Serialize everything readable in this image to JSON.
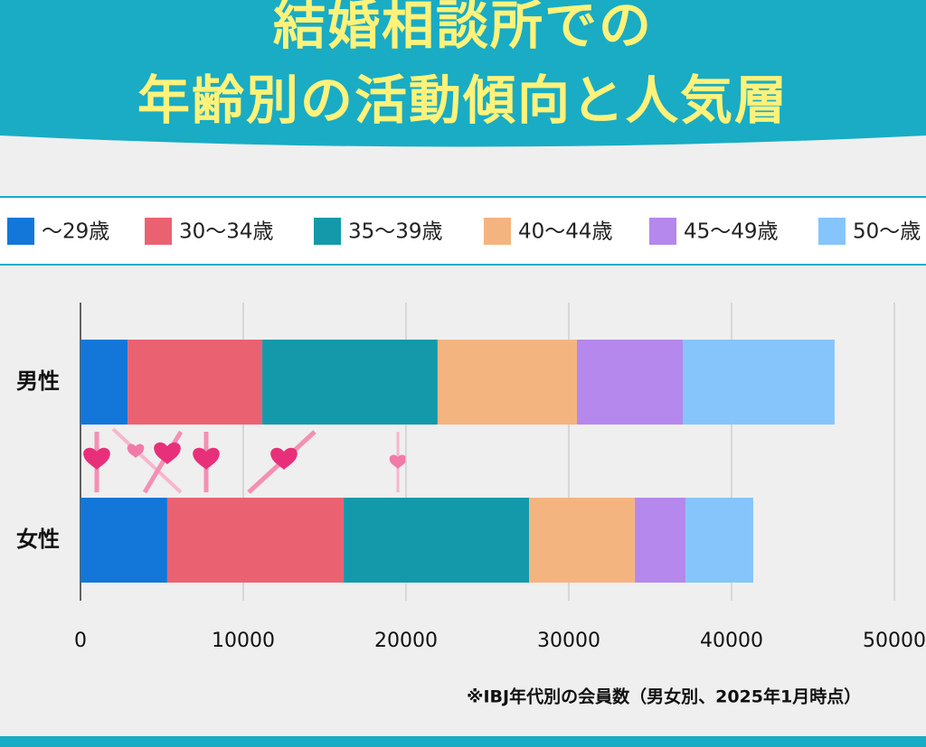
{
  "chart_data": {
    "type": "stacked-bar-horizontal",
    "title": [
      "結婚相談所での",
      "年齢別の活動傾向と人気層"
    ],
    "categories": [
      "男性",
      "女性"
    ],
    "series": [
      {
        "name": "～29歳",
        "color": "#1277d9",
        "values": [
          2900,
          5330
        ]
      },
      {
        "name": "30～34歳",
        "color": "#ea6272",
        "values": [
          8270,
          10840
        ]
      },
      {
        "name": "35～39歳",
        "color": "#1499ab",
        "values": [
          10770,
          11390
        ]
      },
      {
        "name": "40～44歳",
        "color": "#f4b480",
        "values": [
          8560,
          6500
        ]
      },
      {
        "name": "45～49歳",
        "color": "#b488ec",
        "values": [
          6500,
          3110
        ]
      },
      {
        "name": "50～歳",
        "color": "#85c5fb",
        "values": [
          9330,
          4160
        ]
      }
    ],
    "xlim": [
      0,
      50000
    ],
    "xticks": [
      0,
      10000,
      20000,
      30000,
      40000,
      50000
    ],
    "grid": true,
    "note": "※IBJ年代別の会員数（男女別、2025年1月時点）"
  }
}
